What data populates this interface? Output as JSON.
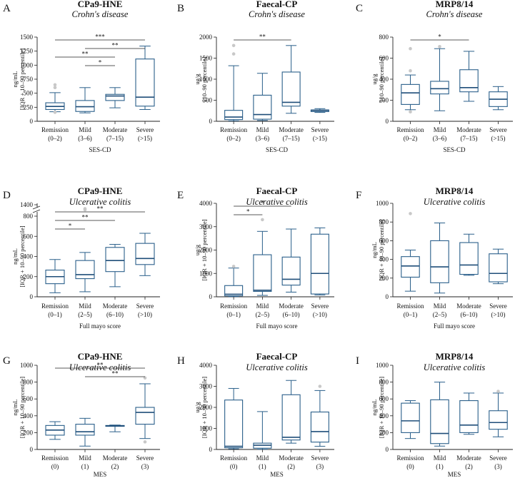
{
  "figure": {
    "colors": {
      "box": "#2a5f8a",
      "median": "#1f4e79",
      "outlier": "#c8c8c8",
      "axis": "#222222"
    }
  },
  "chart_data": [
    {
      "id": "A",
      "label": "A",
      "type": "box",
      "title": "CPa9-HNE",
      "subtitle": "Crohn's disease",
      "ylabel": [
        "ng/mL",
        "[IQR + 10–90 percentile]"
      ],
      "xlabel": "SES-CD",
      "ylim": [
        0,
        1500
      ],
      "yticks": [
        0,
        250,
        500,
        750,
        1000,
        1250,
        1500
      ],
      "categories": [
        {
          "name": "Remission",
          "range": "(0–2)"
        },
        {
          "name": "Mild",
          "range": "(3–6)"
        },
        {
          "name": "Moderate",
          "range": "(7–15)"
        },
        {
          "name": "Severe",
          "range": "(>15)"
        }
      ],
      "boxes": [
        {
          "lo": 170,
          "q1": 210,
          "med": 265,
          "q3": 330,
          "hi": 510,
          "out": [
            160,
            600,
            650
          ]
        },
        {
          "lo": 150,
          "q1": 175,
          "med": 260,
          "q3": 370,
          "hi": 600,
          "out": []
        },
        {
          "lo": 240,
          "q1": 370,
          "med": 450,
          "q3": 480,
          "hi": 600,
          "out": []
        },
        {
          "lo": 210,
          "q1": 270,
          "med": 430,
          "q3": 1110,
          "hi": 1340,
          "out": []
        }
      ],
      "significance": [
        {
          "from": 0,
          "to": 3,
          "label": "***"
        },
        {
          "from": 1,
          "to": 3,
          "label": "**"
        },
        {
          "from": 0,
          "to": 2,
          "label": "**"
        },
        {
          "from": 1,
          "to": 2,
          "label": "*"
        }
      ]
    },
    {
      "id": "B",
      "label": "B",
      "type": "box",
      "title": "Faecal-CP",
      "subtitle": "Crohn's disease",
      "ylabel": [
        "ug/g",
        "[10–90 percentile]"
      ],
      "xlabel": "SES-CD",
      "ylim": [
        0,
        2000
      ],
      "yticks": [
        0,
        500,
        1000,
        1500,
        2000
      ],
      "categories": [
        {
          "name": "Remission",
          "range": "(0–2)"
        },
        {
          "name": "Mild",
          "range": "(3–6)"
        },
        {
          "name": "Moderate",
          "range": "(7–15)"
        },
        {
          "name": "Severe",
          "range": "(>15)"
        }
      ],
      "boxes": [
        {
          "lo": 10,
          "q1": 40,
          "med": 100,
          "q3": 260,
          "hi": 1320,
          "out": [
            1600,
            1800
          ]
        },
        {
          "lo": 20,
          "q1": 50,
          "med": 160,
          "q3": 620,
          "hi": 1140,
          "out": []
        },
        {
          "lo": 190,
          "q1": 360,
          "med": 450,
          "q3": 1170,
          "hi": 1800,
          "out": []
        },
        {
          "lo": 210,
          "q1": 230,
          "med": 260,
          "q3": 270,
          "hi": 300,
          "out": []
        }
      ],
      "significance": [
        {
          "from": 0,
          "to": 2,
          "label": "**"
        }
      ]
    },
    {
      "id": "C",
      "label": "C",
      "type": "box",
      "title": "MRP8/14",
      "subtitle": "Crohn's disease",
      "ylabel": [
        "ug/g",
        "[10–90 percentile]"
      ],
      "xlabel": "SES-CD",
      "ylim": [
        0,
        800
      ],
      "yticks": [
        0,
        200,
        400,
        600,
        800
      ],
      "categories": [
        {
          "name": "Remission",
          "range": "(0–2)"
        },
        {
          "name": "Mild",
          "range": "(3–6)"
        },
        {
          "name": "Moderate",
          "range": "(7–15)"
        },
        {
          "name": "Severe",
          "range": "(>15)"
        }
      ],
      "boxes": [
        {
          "lo": 110,
          "q1": 160,
          "med": 270,
          "q3": 350,
          "hi": 440,
          "out": [
            90,
            480,
            690
          ]
        },
        {
          "lo": 100,
          "q1": 260,
          "med": 310,
          "q3": 380,
          "hi": 690,
          "out": [
            710
          ]
        },
        {
          "lo": 190,
          "q1": 280,
          "med": 320,
          "q3": 490,
          "hi": 665,
          "out": []
        },
        {
          "lo": 110,
          "q1": 140,
          "med": 210,
          "q3": 280,
          "hi": 330,
          "out": []
        }
      ],
      "significance": [
        {
          "from": 0,
          "to": 2,
          "label": "*"
        }
      ]
    },
    {
      "id": "D",
      "label": "D",
      "type": "box",
      "title": "CPa9-HNE",
      "subtitle": "Ulcerative colitis",
      "ylabel": [
        "ng/mL",
        "[IQR + 10–90 percentile]"
      ],
      "xlabel": "Full mayo score",
      "ylim": [
        0,
        800
      ],
      "yticks": [
        0,
        200,
        400,
        600,
        800
      ],
      "break_ticks": [
        1400
      ],
      "categories": [
        {
          "name": "Remission",
          "range": "(0–1)"
        },
        {
          "name": "Mild",
          "range": "(2–5)"
        },
        {
          "name": "Moderate",
          "range": "(6–10)"
        },
        {
          "name": "Severe",
          "range": "(>10)"
        }
      ],
      "boxes": [
        {
          "lo": 40,
          "q1": 130,
          "med": 200,
          "q3": 265,
          "hi": 370,
          "out": []
        },
        {
          "lo": 50,
          "q1": 180,
          "med": 220,
          "q3": 360,
          "hi": 440,
          "out": [
            1300,
            1350
          ]
        },
        {
          "lo": 100,
          "q1": 250,
          "med": 360,
          "q3": 490,
          "hi": 520,
          "out": []
        },
        {
          "lo": 210,
          "q1": 320,
          "med": 380,
          "q3": 530,
          "hi": 630,
          "out": []
        }
      ],
      "significance": [
        {
          "from": 0,
          "to": 3,
          "label": "**"
        },
        {
          "from": 0,
          "to": 2,
          "label": "**"
        },
        {
          "from": 0,
          "to": 1,
          "label": "*"
        }
      ]
    },
    {
      "id": "E",
      "label": "E",
      "type": "box",
      "title": "Faecal-CP",
      "subtitle": "Ulcerative colitis",
      "ylabel": [
        "ug/g",
        "[IQR + 10–90 percentile]"
      ],
      "xlabel": "Full mayo score",
      "ylim": [
        0,
        4000
      ],
      "yticks": [
        0,
        1000,
        2000,
        3000,
        4000
      ],
      "categories": [
        {
          "name": "Remission",
          "range": "(0–1)"
        },
        {
          "name": "Mild",
          "range": "(2–5)"
        },
        {
          "name": "Moderate",
          "range": "(6–10)"
        },
        {
          "name": "Severe",
          "range": "(>10)"
        }
      ],
      "boxes": [
        {
          "lo": 10,
          "q1": 40,
          "med": 110,
          "q3": 480,
          "hi": 1230,
          "out": [
            1300
          ]
        },
        {
          "lo": 60,
          "q1": 230,
          "med": 280,
          "q3": 1800,
          "hi": 2800,
          "out": [
            3300
          ]
        },
        {
          "lo": 200,
          "q1": 500,
          "med": 750,
          "q3": 1700,
          "hi": 2900,
          "out": []
        },
        {
          "lo": 80,
          "q1": 120,
          "med": 1000,
          "q3": 2680,
          "hi": 2950,
          "out": []
        }
      ],
      "significance": [
        {
          "from": 0,
          "to": 2,
          "label": "*"
        },
        {
          "from": 0,
          "to": 1,
          "label": "*"
        }
      ]
    },
    {
      "id": "F",
      "label": "F",
      "type": "box",
      "title": "MRP8/14",
      "subtitle": "Ulcerative colitis",
      "ylabel": [
        "ng/mL",
        "[IQR + 10–90 percentile]"
      ],
      "xlabel": "Full mayo score",
      "ylim": [
        0,
        1000
      ],
      "yticks": [
        0,
        200,
        400,
        600,
        800,
        1000
      ],
      "categories": [
        {
          "name": "Remission",
          "range": "(0–1)"
        },
        {
          "name": "Mild",
          "range": "(2–5)"
        },
        {
          "name": "Moderate",
          "range": "(6–10)"
        },
        {
          "name": "Severe",
          "range": "(>10)"
        }
      ],
      "boxes": [
        {
          "lo": 60,
          "q1": 210,
          "med": 330,
          "q3": 430,
          "hi": 500,
          "out": [
            890
          ]
        },
        {
          "lo": 40,
          "q1": 150,
          "med": 320,
          "q3": 600,
          "hi": 790,
          "out": []
        },
        {
          "lo": 230,
          "q1": 240,
          "med": 340,
          "q3": 580,
          "hi": 670,
          "out": []
        },
        {
          "lo": 140,
          "q1": 160,
          "med": 250,
          "q3": 460,
          "hi": 510,
          "out": []
        }
      ],
      "significance": []
    },
    {
      "id": "G",
      "label": "G",
      "type": "box",
      "title": "CPa9-HNE",
      "subtitle": "Ulcerative colitis",
      "ylabel": [
        "ng/mL",
        "[IQR + 10–90 percentile]"
      ],
      "xlabel": "MES",
      "ylim": [
        0,
        1000
      ],
      "yticks": [
        0,
        200,
        400,
        600,
        800,
        1000
      ],
      "categories": [
        {
          "name": "Remission",
          "range": "(0)"
        },
        {
          "name": "Mild",
          "range": "(1)"
        },
        {
          "name": "Moderate",
          "range": "(2)"
        },
        {
          "name": "Severe",
          "range": "(3)"
        }
      ],
      "boxes": [
        {
          "lo": 120,
          "q1": 170,
          "med": 230,
          "q3": 285,
          "hi": 330,
          "out": []
        },
        {
          "lo": 40,
          "q1": 170,
          "med": 210,
          "q3": 300,
          "hi": 370,
          "out": []
        },
        {
          "lo": 210,
          "q1": 275,
          "med": 280,
          "q3": 285,
          "hi": 290,
          "out": []
        },
        {
          "lo": 130,
          "q1": 300,
          "med": 440,
          "q3": 500,
          "hi": 780,
          "out": [
            90,
            850
          ]
        }
      ],
      "significance": [
        {
          "from": 0,
          "to": 3,
          "label": "**"
        },
        {
          "from": 1,
          "to": 3,
          "label": "**"
        }
      ]
    },
    {
      "id": "H",
      "label": "H",
      "type": "box",
      "title": "Faecal-CP",
      "subtitle": "Ulcerative colitis",
      "ylabel": [
        "ug/g",
        "[IQR + 10–90 percentile]"
      ],
      "xlabel": "MES",
      "ylim": [
        0,
        4000
      ],
      "yticks": [
        0,
        1000,
        2000,
        3000,
        4000
      ],
      "categories": [
        {
          "name": "Remission",
          "range": "(0)"
        },
        {
          "name": "Mild",
          "range": "(1)"
        },
        {
          "name": "Moderate",
          "range": "(2)"
        },
        {
          "name": "Severe",
          "range": "(3)"
        }
      ],
      "boxes": [
        {
          "lo": 30,
          "q1": 80,
          "med": 150,
          "q3": 2350,
          "hi": 2900,
          "out": []
        },
        {
          "lo": 10,
          "q1": 60,
          "med": 200,
          "q3": 300,
          "hi": 1800,
          "out": []
        },
        {
          "lo": 300,
          "q1": 450,
          "med": 580,
          "q3": 2600,
          "hi": 3280,
          "out": []
        },
        {
          "lo": 150,
          "q1": 350,
          "med": 850,
          "q3": 1780,
          "hi": 2800,
          "out": [
            3000
          ]
        }
      ],
      "significance": []
    },
    {
      "id": "I",
      "label": "I",
      "type": "box",
      "title": "MRP8/14",
      "subtitle": "Ulcerative colitis",
      "ylabel": [
        "ng/mL",
        "[IQR + 10–90 percentile]"
      ],
      "xlabel": "MES",
      "ylim": [
        0,
        1000
      ],
      "yticks": [
        0,
        200,
        400,
        600,
        800,
        1000
      ],
      "categories": [
        {
          "name": "Remission",
          "range": "(0)"
        },
        {
          "name": "Mild",
          "range": "(1)"
        },
        {
          "name": "Moderate",
          "range": "(2)"
        },
        {
          "name": "Severe",
          "range": "(3)"
        }
      ],
      "boxes": [
        {
          "lo": 130,
          "q1": 200,
          "med": 340,
          "q3": 550,
          "hi": 580,
          "out": []
        },
        {
          "lo": 40,
          "q1": 70,
          "med": 190,
          "q3": 590,
          "hi": 800,
          "out": []
        },
        {
          "lo": 180,
          "q1": 200,
          "med": 290,
          "q3": 580,
          "hi": 670,
          "out": []
        },
        {
          "lo": 150,
          "q1": 240,
          "med": 320,
          "q3": 460,
          "hi": 670,
          "out": [
            690
          ]
        }
      ],
      "significance": []
    }
  ]
}
